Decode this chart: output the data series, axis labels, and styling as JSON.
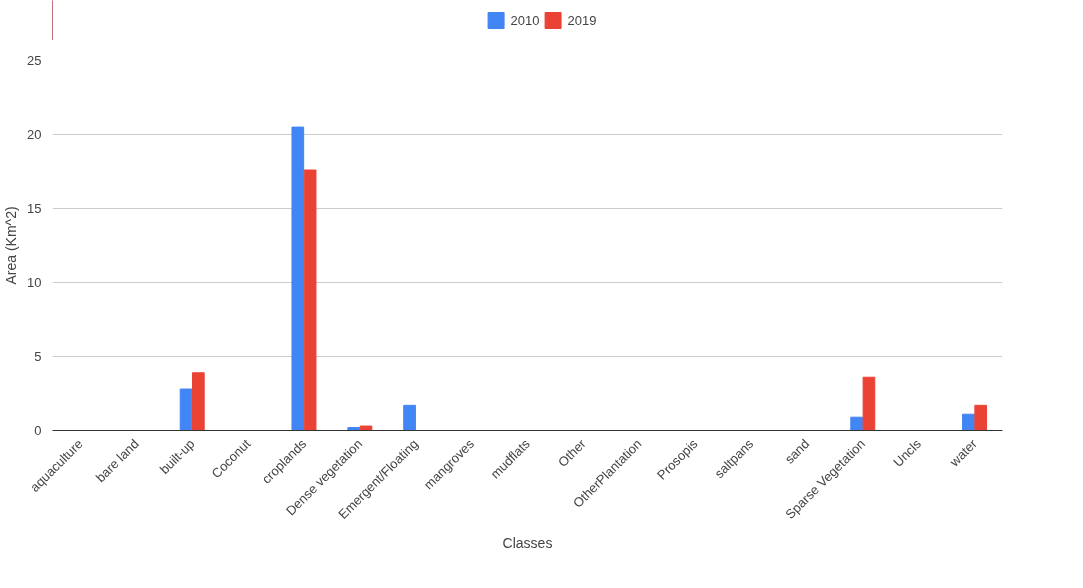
{
  "chart_data": {
    "type": "bar",
    "xlabel": "Classes",
    "ylabel": "Area (Km^2)",
    "categories": [
      "aquaculture",
      "bare land",
      "built-up",
      "Coconut",
      "croplands",
      "Dense vegetation",
      "Emergent/Floating",
      "mangroves",
      "mudflats",
      "Other",
      "OtherPlantation",
      "Prosopis",
      "saltpans",
      "sand",
      "Sparse Vegetation",
      "Uncls",
      "water"
    ],
    "series": [
      {
        "name": "2010",
        "color": "#4285f4",
        "values": [
          0,
          0,
          2.8,
          0,
          20.5,
          0.2,
          1.7,
          0,
          0,
          0,
          0,
          0,
          0,
          0,
          0.9,
          0,
          1.1
        ]
      },
      {
        "name": "2019",
        "color": "#ea4335",
        "values": [
          0,
          0,
          3.9,
          0,
          17.6,
          0.3,
          0,
          0,
          0,
          0,
          0,
          0,
          0,
          0,
          3.6,
          0,
          1.7
        ]
      }
    ],
    "ylim": [
      0,
      25
    ],
    "yticks": [
      0,
      5,
      10,
      15,
      20,
      25
    ],
    "grid": "y",
    "legend": "top"
  }
}
